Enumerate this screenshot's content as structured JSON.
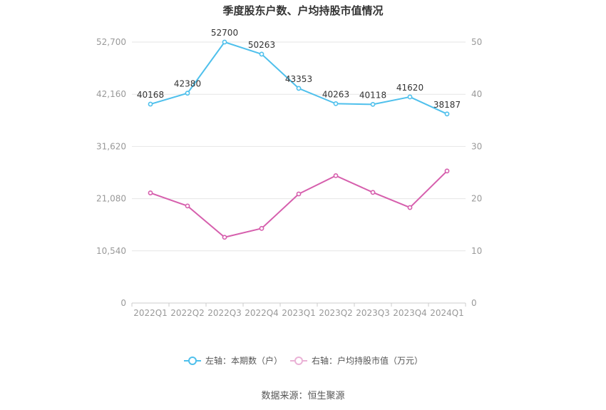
{
  "chart_data": {
    "type": "line",
    "title": "季度股东户数、户均持股市值情况",
    "categories": [
      "2022Q1",
      "2022Q2",
      "2022Q3",
      "2022Q4",
      "2023Q1",
      "2023Q2",
      "2023Q3",
      "2023Q4",
      "2024Q1"
    ],
    "left_axis": {
      "ylim": [
        0,
        52700
      ],
      "ticks": [
        0,
        10540,
        21080,
        31620,
        42160,
        52700
      ],
      "tick_labels": [
        "0",
        "10,540",
        "21,080",
        "31,620",
        "42,160",
        "52,700"
      ]
    },
    "right_axis": {
      "ylim": [
        0,
        50
      ],
      "ticks": [
        0,
        10,
        20,
        30,
        40,
        50
      ],
      "tick_labels": [
        "0",
        "10",
        "20",
        "30",
        "40",
        "50"
      ]
    },
    "series": [
      {
        "name": "左轴：本期数（户）",
        "axis": "left",
        "color": "#4fc0ec",
        "values": [
          40168,
          42380,
          52700,
          50263,
          43353,
          40263,
          40118,
          41620,
          38187
        ],
        "labels": [
          "40168",
          "42380",
          "52700",
          "50263",
          "43353",
          "40263",
          "40118",
          "41620",
          "38187"
        ]
      },
      {
        "name": "右轴：户均持股市值（万元）",
        "axis": "right",
        "color": "#d65fad",
        "values": [
          21.1,
          18.6,
          12.6,
          14.3,
          20.9,
          24.4,
          21.2,
          18.3,
          25.3
        ]
      }
    ],
    "grid": true,
    "legend_position": "bottom"
  },
  "source": "数据来源：恒生聚源"
}
